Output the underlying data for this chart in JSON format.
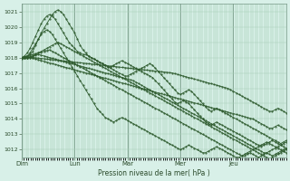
{
  "bg_color": "#cce8d8",
  "plot_bg_color": "#d8f0e8",
  "grid_color": "#a8d0b8",
  "line_color": "#2d5a2d",
  "xlabel": "Pression niveau de la mer( hPa )",
  "ylim": [
    1011.5,
    1021.5
  ],
  "yticks": [
    1012,
    1013,
    1014,
    1015,
    1016,
    1017,
    1018,
    1019,
    1020,
    1021
  ],
  "day_labels": [
    "Dim",
    "Lun",
    "Mar",
    "Mer",
    "Jeu"
  ],
  "day_positions": [
    0,
    24,
    48,
    72,
    96
  ],
  "total_hours": 120,
  "lines": [
    [
      1018.0,
      1018.05,
      1018.1,
      1018.2,
      1018.4,
      1018.8,
      1019.2,
      1019.6,
      1019.9,
      1020.2,
      1020.5,
      1020.8,
      1021.0,
      1021.1,
      1021.0,
      1020.8,
      1020.5,
      1020.2,
      1019.9,
      1019.6,
      1019.2,
      1018.8,
      1018.5,
      1018.3,
      1018.1,
      1018.0,
      1017.9,
      1017.8,
      1017.7,
      1017.6,
      1017.5,
      1017.4,
      1017.3,
      1017.2,
      1017.1,
      1017.0,
      1016.9,
      1016.8,
      1016.8,
      1016.9,
      1017.0,
      1017.1,
      1017.2,
      1017.3,
      1017.4,
      1017.5,
      1017.6,
      1017.5,
      1017.3,
      1017.1,
      1016.9,
      1016.7,
      1016.5,
      1016.3,
      1016.1,
      1015.9,
      1015.7,
      1015.6,
      1015.7,
      1015.8,
      1015.9,
      1015.8,
      1015.6,
      1015.4,
      1015.2,
      1015.0,
      1014.8,
      1014.6,
      1014.5,
      1014.6,
      1014.7,
      1014.6,
      1014.5,
      1014.4,
      1014.3,
      1014.2,
      1014.1,
      1014.0,
      1013.9,
      1013.8,
      1013.7,
      1013.6,
      1013.5,
      1013.4,
      1013.3,
      1013.2,
      1013.1,
      1013.0,
      1012.9,
      1012.8,
      1012.7,
      1012.6,
      1012.5,
      1012.4,
      1012.5,
      1012.6
    ],
    [
      1018.0,
      1018.1,
      1018.3,
      1018.6,
      1019.0,
      1019.4,
      1019.8,
      1020.2,
      1020.5,
      1020.7,
      1020.8,
      1020.7,
      1020.5,
      1020.2,
      1019.9,
      1019.6,
      1019.3,
      1019.0,
      1018.8,
      1018.6,
      1018.4,
      1018.3,
      1018.2,
      1018.2,
      1018.1,
      1018.0,
      1017.9,
      1017.8,
      1017.7,
      1017.6,
      1017.5,
      1017.4,
      1017.4,
      1017.5,
      1017.6,
      1017.7,
      1017.8,
      1017.7,
      1017.6,
      1017.5,
      1017.4,
      1017.3,
      1017.2,
      1017.1,
      1017.0,
      1016.9,
      1016.8,
      1016.7,
      1016.5,
      1016.3,
      1016.1,
      1015.9,
      1015.7,
      1015.5,
      1015.3,
      1015.1,
      1015.0,
      1015.1,
      1015.2,
      1015.1,
      1015.0,
      1014.8,
      1014.6,
      1014.4,
      1014.2,
      1014.0,
      1013.8,
      1013.7,
      1013.6,
      1013.7,
      1013.8,
      1013.7,
      1013.6,
      1013.5,
      1013.4,
      1013.3,
      1013.2,
      1013.1,
      1013.0,
      1012.9,
      1012.8,
      1012.7,
      1012.6,
      1012.5,
      1012.4,
      1012.3,
      1012.2,
      1012.3,
      1012.4,
      1012.5,
      1012.6,
      1012.5,
      1012.4,
      1012.3,
      1012.2,
      1012.1
    ],
    [
      1018.0,
      1018.0,
      1018.1,
      1018.3,
      1018.6,
      1018.9,
      1019.2,
      1019.5,
      1019.7,
      1019.8,
      1019.7,
      1019.5,
      1019.2,
      1018.9,
      1018.6,
      1018.3,
      1018.0,
      1017.7,
      1017.4,
      1017.1,
      1016.8,
      1016.5,
      1016.2,
      1015.9,
      1015.6,
      1015.3,
      1015.0,
      1014.7,
      1014.5,
      1014.3,
      1014.1,
      1014.0,
      1013.9,
      1013.8,
      1013.9,
      1014.0,
      1014.1,
      1014.0,
      1013.9,
      1013.8,
      1013.7,
      1013.6,
      1013.5,
      1013.4,
      1013.3,
      1013.2,
      1013.1,
      1013.0,
      1012.9,
      1012.8,
      1012.7,
      1012.6,
      1012.5,
      1012.4,
      1012.3,
      1012.2,
      1012.1,
      1012.0,
      1012.1,
      1012.2,
      1012.3,
      1012.2,
      1012.1,
      1012.0,
      1011.9,
      1011.8,
      1011.8,
      1011.9,
      1012.0,
      1012.1,
      1012.2,
      1012.1,
      1012.0,
      1011.9,
      1011.8,
      1011.7,
      1011.6,
      1011.5,
      1011.5,
      1011.6,
      1011.7,
      1011.8,
      1011.9,
      1012.0,
      1012.1,
      1012.2,
      1012.3,
      1012.4,
      1012.5,
      1012.4,
      1012.3,
      1012.2,
      1012.1,
      1012.0,
      1011.9,
      1011.8
    ],
    [
      1018.0,
      1018.0,
      1018.0,
      1018.05,
      1018.1,
      1018.2,
      1018.3,
      1018.4,
      1018.5,
      1018.6,
      1018.7,
      1018.8,
      1018.9,
      1019.0,
      1018.9,
      1018.8,
      1018.7,
      1018.6,
      1018.5,
      1018.4,
      1018.3,
      1018.2,
      1018.1,
      1018.0,
      1017.9,
      1017.8,
      1017.7,
      1017.6,
      1017.5,
      1017.4,
      1017.3,
      1017.2,
      1017.1,
      1017.0,
      1016.9,
      1016.8,
      1016.7,
      1016.6,
      1016.5,
      1016.4,
      1016.3,
      1016.2,
      1016.1,
      1016.0,
      1015.9,
      1015.8,
      1015.7,
      1015.6,
      1015.5,
      1015.4,
      1015.3,
      1015.2,
      1015.1,
      1015.0,
      1014.9,
      1014.8,
      1014.7,
      1014.6,
      1014.5,
      1014.4,
      1014.3,
      1014.2,
      1014.1,
      1014.0,
      1013.9,
      1013.8,
      1013.7,
      1013.6,
      1013.5,
      1013.4,
      1013.3,
      1013.2,
      1013.1,
      1013.0,
      1012.9,
      1012.8,
      1012.7,
      1012.6,
      1012.5,
      1012.4,
      1012.3,
      1012.2,
      1012.1,
      1012.0,
      1011.9,
      1011.8,
      1011.7,
      1011.6,
      1011.5,
      1011.4,
      1011.5,
      1011.6,
      1011.7,
      1011.8,
      1011.9,
      1012.0
    ],
    [
      1018.0,
      1018.05,
      1018.1,
      1018.15,
      1018.2,
      1018.25,
      1018.3,
      1018.35,
      1018.4,
      1018.45,
      1018.5,
      1018.4,
      1018.3,
      1018.2,
      1018.1,
      1018.0,
      1017.9,
      1017.8,
      1017.7,
      1017.6,
      1017.5,
      1017.4,
      1017.3,
      1017.2,
      1017.1,
      1017.0,
      1016.9,
      1016.8,
      1016.7,
      1016.6,
      1016.5,
      1016.4,
      1016.3,
      1016.2,
      1016.1,
      1016.0,
      1015.9,
      1015.8,
      1015.7,
      1015.6,
      1015.5,
      1015.4,
      1015.3,
      1015.2,
      1015.1,
      1015.0,
      1014.9,
      1014.8,
      1014.7,
      1014.6,
      1014.5,
      1014.4,
      1014.3,
      1014.2,
      1014.1,
      1014.0,
      1013.9,
      1013.8,
      1013.7,
      1013.6,
      1013.5,
      1013.4,
      1013.3,
      1013.2,
      1013.1,
      1013.0,
      1012.9,
      1012.8,
      1012.7,
      1012.6,
      1012.5,
      1012.4,
      1012.3,
      1012.2,
      1012.1,
      1012.0,
      1011.9,
      1011.8,
      1011.7,
      1011.6,
      1011.6,
      1011.7,
      1011.8,
      1011.7,
      1011.6,
      1011.5,
      1011.6,
      1011.7,
      1011.8,
      1011.7,
      1011.6,
      1011.7,
      1011.8,
      1011.9,
      1012.0,
      1012.1
    ],
    [
      1017.9,
      1017.95,
      1018.0,
      1018.05,
      1018.1,
      1018.15,
      1018.2,
      1018.15,
      1018.1,
      1018.05,
      1018.0,
      1017.95,
      1017.9,
      1017.85,
      1017.8,
      1017.75,
      1017.7,
      1017.65,
      1017.6,
      1017.55,
      1017.5,
      1017.45,
      1017.4,
      1017.35,
      1017.3,
      1017.25,
      1017.2,
      1017.15,
      1017.1,
      1017.05,
      1017.0,
      1016.95,
      1016.9,
      1016.85,
      1016.8,
      1016.75,
      1016.7,
      1016.65,
      1016.6,
      1016.55,
      1016.5,
      1016.4,
      1016.3,
      1016.2,
      1016.1,
      1016.0,
      1015.9,
      1015.8,
      1015.7,
      1015.6,
      1015.5,
      1015.4,
      1015.3,
      1015.2,
      1015.1,
      1015.0,
      1014.9,
      1014.8,
      1014.7,
      1014.6,
      1014.5,
      1014.4,
      1014.3,
      1014.2,
      1014.1,
      1014.0,
      1013.9,
      1013.8,
      1013.7,
      1013.6,
      1013.5,
      1013.4,
      1013.3,
      1013.2,
      1013.1,
      1013.0,
      1012.9,
      1012.8,
      1012.7,
      1012.6,
      1012.5,
      1012.4,
      1012.3,
      1012.2,
      1012.1,
      1012.0,
      1011.9,
      1011.8,
      1011.8,
      1011.9,
      1012.0,
      1012.1,
      1012.2,
      1012.3,
      1012.4,
      1012.5
    ],
    [
      1018.0,
      1018.0,
      1018.0,
      1018.0,
      1017.95,
      1017.9,
      1017.85,
      1017.8,
      1017.75,
      1017.7,
      1017.65,
      1017.6,
      1017.55,
      1017.5,
      1017.45,
      1017.4,
      1017.35,
      1017.3,
      1017.25,
      1017.2,
      1017.15,
      1017.1,
      1017.05,
      1017.0,
      1016.95,
      1016.9,
      1016.85,
      1016.8,
      1016.75,
      1016.7,
      1016.65,
      1016.6,
      1016.55,
      1016.5,
      1016.45,
      1016.4,
      1016.35,
      1016.3,
      1016.25,
      1016.2,
      1016.15,
      1016.1,
      1016.05,
      1016.0,
      1015.95,
      1015.9,
      1015.85,
      1015.8,
      1015.75,
      1015.7,
      1015.65,
      1015.6,
      1015.55,
      1015.5,
      1015.45,
      1015.4,
      1015.35,
      1015.3,
      1015.25,
      1015.2,
      1015.15,
      1015.1,
      1015.05,
      1015.0,
      1014.95,
      1014.9,
      1014.85,
      1014.8,
      1014.75,
      1014.7,
      1014.65,
      1014.6,
      1014.55,
      1014.5,
      1014.45,
      1014.4,
      1014.35,
      1014.3,
      1014.25,
      1014.2,
      1014.15,
      1014.1,
      1014.05,
      1014.0,
      1013.9,
      1013.8,
      1013.7,
      1013.6,
      1013.5,
      1013.4,
      1013.4,
      1013.5,
      1013.6,
      1013.5,
      1013.4,
      1013.3
    ],
    [
      1018.0,
      1018.0,
      1018.0,
      1018.0,
      1018.0,
      1017.98,
      1017.96,
      1017.94,
      1017.92,
      1017.9,
      1017.88,
      1017.86,
      1017.84,
      1017.82,
      1017.8,
      1017.78,
      1017.76,
      1017.74,
      1017.72,
      1017.7,
      1017.68,
      1017.66,
      1017.64,
      1017.62,
      1017.6,
      1017.58,
      1017.56,
      1017.54,
      1017.52,
      1017.5,
      1017.48,
      1017.46,
      1017.44,
      1017.42,
      1017.4,
      1017.38,
      1017.36,
      1017.34,
      1017.32,
      1017.3,
      1017.28,
      1017.26,
      1017.24,
      1017.22,
      1017.2,
      1017.18,
      1017.16,
      1017.14,
      1017.12,
      1017.1,
      1017.08,
      1017.06,
      1017.04,
      1017.02,
      1017.0,
      1016.95,
      1016.9,
      1016.85,
      1016.8,
      1016.75,
      1016.7,
      1016.65,
      1016.6,
      1016.55,
      1016.5,
      1016.45,
      1016.4,
      1016.35,
      1016.3,
      1016.25,
      1016.2,
      1016.15,
      1016.1,
      1016.05,
      1016.0,
      1015.9,
      1015.8,
      1015.7,
      1015.6,
      1015.5,
      1015.4,
      1015.3,
      1015.2,
      1015.1,
      1015.0,
      1014.9,
      1014.8,
      1014.7,
      1014.6,
      1014.5,
      1014.5,
      1014.6,
      1014.7,
      1014.6,
      1014.5,
      1014.4
    ]
  ]
}
